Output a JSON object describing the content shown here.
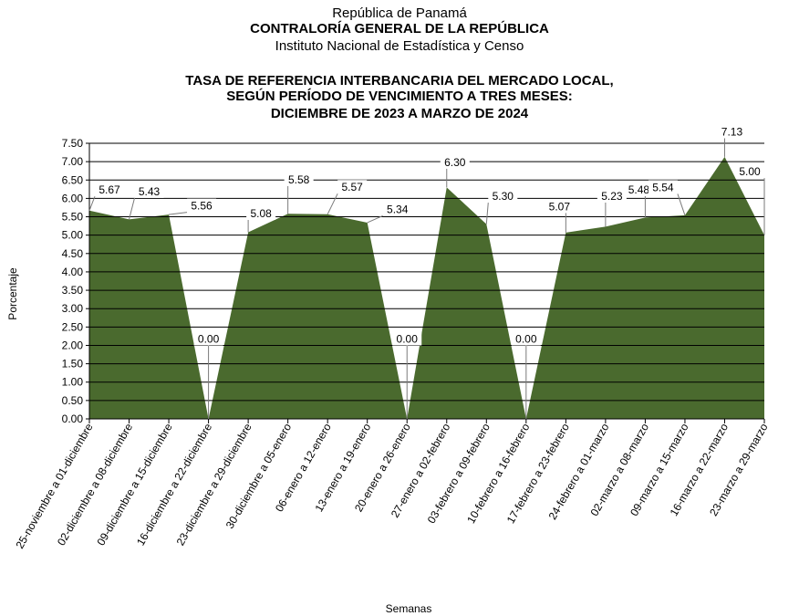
{
  "header": {
    "line1": "República de Panamá",
    "line2": "CONTRALORÍA GENERAL DE LA REPÚBLICA",
    "line3": "Instituto  Nacional  de Estadística  y  Censo"
  },
  "chart_data": {
    "type": "area",
    "title_lines": [
      "TASA DE REFERENCIA INTERBANCARIA DEL MERCADO LOCAL,",
      "SEGÚN PERÍODO DE VENCIMIENTO A TRES MESES:",
      "DICIEMBRE DE 2023 A MARZO DE 2024"
    ],
    "xlabel": "Semanas",
    "ylabel": "Porcentaje",
    "ylim": [
      0,
      7.5
    ],
    "yticks": [
      "0.00",
      "0.50",
      "1.00",
      "1.50",
      "2.00",
      "2.50",
      "3.00",
      "3.50",
      "4.00",
      "4.50",
      "5.00",
      "5.50",
      "6.00",
      "6.50",
      "7.00",
      "7.50"
    ],
    "grid": true,
    "color": "#4a6a2e",
    "categories": [
      "25-noviembre a 01-diciembre",
      "02-diciembre a 08-diciembre",
      "09-diciembre a 15-diciembre",
      "16-diciembre a 22-diciembre",
      "23-diciembre a 29-diciembre",
      "30-diciembre a 05-enero",
      "06-enero a 12-enero",
      "13-enero a 19-enero",
      "20-enero a 26-enero",
      "27-enero a 02-febrero",
      "03-febrero a 09-febrero",
      "10-febrero a 16-febrero",
      "17-febrero a 23-febrero",
      "24-febrero a 01-marzo",
      "02-marzo a 08-marzo",
      "09-marzo a 15-marzo",
      "16-marzo a 22-marzo",
      "23-marzo a 29-marzo"
    ],
    "values": [
      5.67,
      5.43,
      5.56,
      0.0,
      5.08,
      5.58,
      5.57,
      5.34,
      0.0,
      6.3,
      5.3,
      0.0,
      5.07,
      5.23,
      5.48,
      5.54,
      7.13,
      5.0
    ],
    "value_labels": [
      "5.67",
      "5.43",
      "5.56",
      "0.00",
      "5.08",
      "5.58",
      "5.57",
      "5.34",
      "0.00",
      "6.30",
      "5.30",
      "0.00",
      "5.07",
      "5.23",
      "5.48",
      "5.54",
      "7.13",
      "5.00"
    ]
  }
}
